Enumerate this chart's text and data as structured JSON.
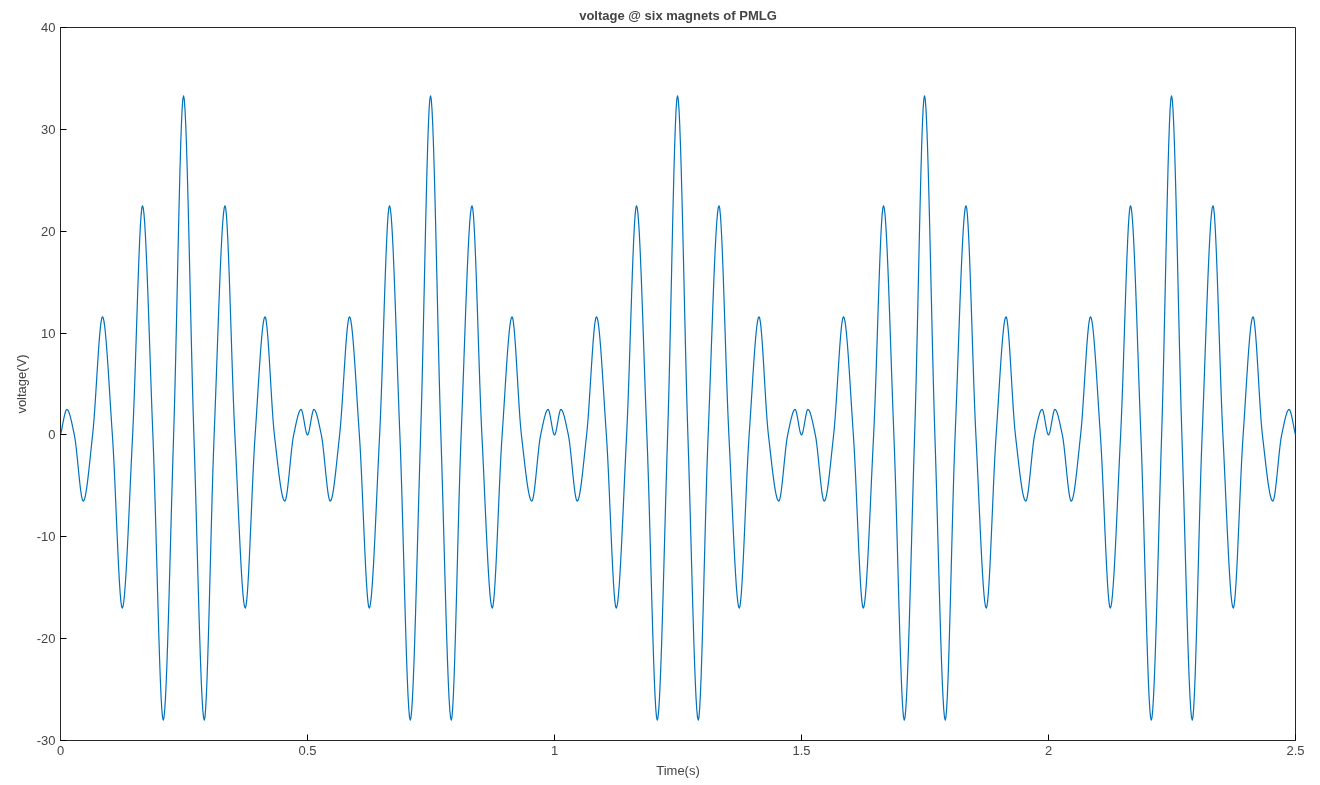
{
  "chart_data": {
    "type": "line",
    "title": "voltage @ six magnets of PMLG",
    "xlabel": "Time(s)",
    "ylabel": "voltage(V)",
    "x": [
      0,
      0.013,
      0.028,
      0.046,
      0.065,
      0.085,
      0.105,
      0.125,
      0.146,
      0.166,
      0.187,
      0.208,
      0.229,
      0.249,
      0.27,
      0.291,
      0.311,
      0.333,
      0.353,
      0.374,
      0.394,
      0.414,
      0.433,
      0.454,
      0.472,
      0.487,
      0.5,
      0.513,
      0.528,
      0.546,
      0.565,
      0.585,
      0.605,
      0.625,
      0.646,
      0.666,
      0.687,
      0.708,
      0.729,
      0.749,
      0.77,
      0.791,
      0.811,
      0.833,
      0.853,
      0.874,
      0.894,
      0.914,
      0.933,
      0.954,
      0.972,
      0.987,
      1,
      1.013,
      1.028,
      1.046,
      1.065,
      1.085,
      1.105,
      1.125,
      1.146,
      1.166,
      1.187,
      1.208,
      1.229,
      1.249,
      1.27,
      1.291,
      1.311,
      1.333,
      1.353,
      1.374,
      1.394,
      1.414,
      1.433,
      1.454,
      1.472,
      1.487,
      1.5,
      1.513,
      1.528,
      1.546,
      1.565,
      1.585,
      1.605,
      1.625,
      1.646,
      1.666,
      1.687,
      1.708,
      1.729,
      1.749,
      1.77,
      1.791,
      1.811,
      1.833,
      1.853,
      1.874,
      1.894,
      1.914,
      1.933,
      1.954,
      1.972,
      1.987,
      2,
      2.013,
      2.028,
      2.046,
      2.065,
      2.085,
      2.105,
      2.125,
      2.146,
      2.166,
      2.187,
      2.208,
      2.229,
      2.249,
      2.27,
      2.291,
      2.311,
      2.333,
      2.353,
      2.374,
      2.394,
      2.414,
      2.433,
      2.454,
      2.472,
      2.487,
      2.5
    ],
    "series": [
      {
        "color": "#0072bd",
        "values": [
          0,
          2.5,
          0,
          -6.5,
          0,
          11.6,
          0,
          -17,
          0,
          22.5,
          0,
          -28,
          0,
          33.3,
          0,
          -28,
          0,
          22.5,
          0,
          -17,
          0,
          11.6,
          0,
          -6.5,
          0,
          2.5,
          0,
          2.5,
          0,
          -6.5,
          0,
          11.6,
          0,
          -17,
          0,
          22.5,
          0,
          -28,
          0,
          33.3,
          0,
          -28,
          0,
          22.5,
          0,
          -17,
          0,
          11.6,
          0,
          -6.5,
          0,
          2.5,
          0,
          2.5,
          0,
          -6.5,
          0,
          11.6,
          0,
          -17,
          0,
          22.5,
          0,
          -28,
          0,
          33.3,
          0,
          -28,
          0,
          22.5,
          0,
          -17,
          0,
          11.6,
          0,
          -6.5,
          0,
          2.5,
          0,
          2.5,
          0,
          -6.5,
          0,
          11.6,
          0,
          -17,
          0,
          22.5,
          0,
          -28,
          0,
          33.3,
          0,
          -28,
          0,
          22.5,
          0,
          -17,
          0,
          11.6,
          0,
          -6.5,
          0,
          2.5,
          0,
          2.5,
          0,
          -6.5,
          0,
          11.6,
          0,
          -17,
          0,
          22.5,
          0,
          -28,
          0,
          33.3,
          0,
          -28,
          0,
          22.5,
          0,
          -17,
          0,
          11.6,
          0,
          -6.5,
          0,
          2.5,
          0
        ]
      }
    ],
    "xlim": [
      0,
      2.5
    ],
    "ylim": [
      -30,
      40
    ],
    "xticks": [
      0,
      0.5,
      1,
      1.5,
      2,
      2.5
    ],
    "yticks": [
      -30,
      -20,
      -10,
      0,
      10,
      20,
      30,
      40
    ],
    "grid": false,
    "marker": "none",
    "line_style": "solid"
  }
}
